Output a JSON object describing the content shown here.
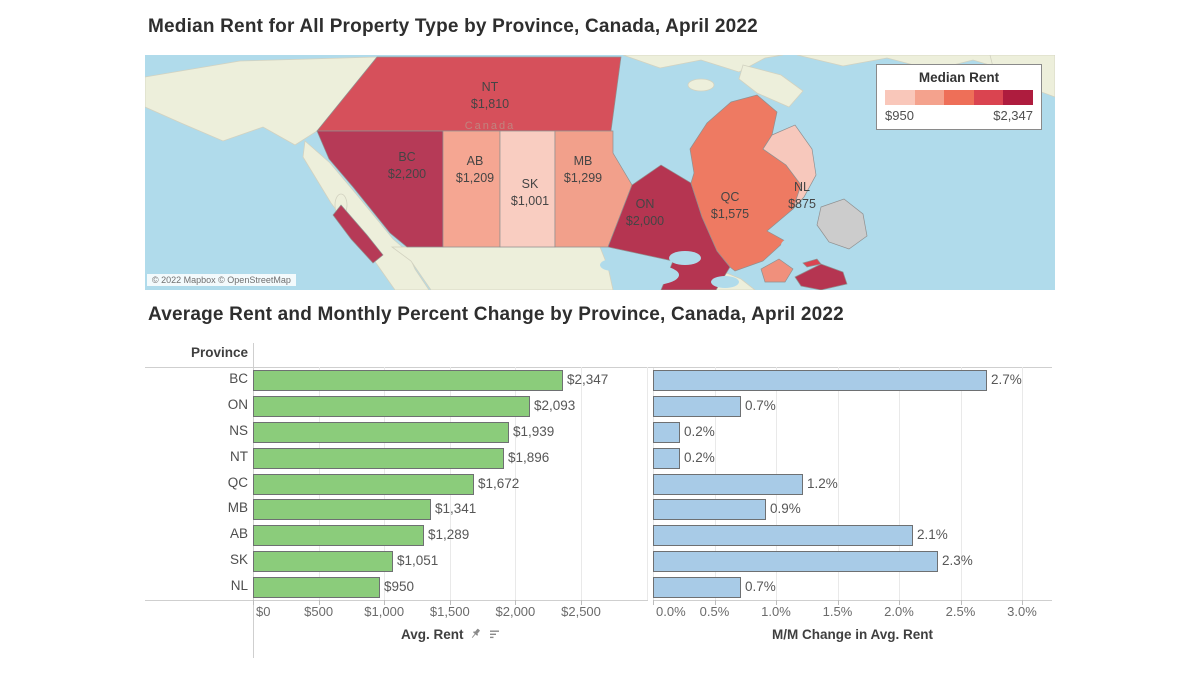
{
  "map": {
    "title": "Median Rent for All Property Type by Province, Canada, April 2022",
    "country_label": "Canada",
    "attribution": "© 2022 Mapbox © OpenStreetMap",
    "legend": {
      "title": "Median Rent",
      "min_label": "$950",
      "max_label": "$2,347",
      "colors": [
        "#f9c7ba",
        "#f4a28d",
        "#ee6f58",
        "#da4450",
        "#ae1c3e"
      ]
    },
    "colors": {
      "ocean": "#b0dbeb",
      "land": "#edefdb"
    },
    "provinces": [
      {
        "code": "NT",
        "value_label": "$1,810",
        "color": "#d6505b"
      },
      {
        "code": "BC",
        "value_label": "$2,200",
        "color": "#b63a57"
      },
      {
        "code": "AB",
        "value_label": "$1,209",
        "color": "#f5a692"
      },
      {
        "code": "SK",
        "value_label": "$1,001",
        "color": "#f9cdc1"
      },
      {
        "code": "MB",
        "value_label": "$1,299",
        "color": "#f2a08b"
      },
      {
        "code": "ON",
        "value_label": "$2,000",
        "color": "#b53551"
      },
      {
        "code": "QC",
        "value_label": "$1,575",
        "color": "#ee7a62"
      },
      {
        "code": "NL",
        "value_label": "$875",
        "color": "#f7c8bc"
      }
    ]
  },
  "charts": {
    "title": "Average Rent and Monthly Percent Change by Province, Canada, April 2022",
    "row_header": "Province",
    "left": {
      "axis_title": "Avg. Rent",
      "ticks": [
        "$0",
        "$500",
        "$1,000",
        "$1,500",
        "$2,000",
        "$2,500"
      ],
      "bar_color": "#8bcc7b"
    },
    "right": {
      "axis_title": "M/M Change in Avg. Rent",
      "ticks": [
        "0.0%",
        "0.5%",
        "1.0%",
        "1.5%",
        "2.0%",
        "2.5%",
        "3.0%"
      ],
      "bar_color": "#a8cbe7"
    },
    "rows": [
      {
        "province": "BC",
        "rent": 2347,
        "rent_label": "$2,347",
        "change": 2.7,
        "change_label": "2.7%"
      },
      {
        "province": "ON",
        "rent": 2093,
        "rent_label": "$2,093",
        "change": 0.7,
        "change_label": "0.7%"
      },
      {
        "province": "NS",
        "rent": 1939,
        "rent_label": "$1,939",
        "change": 0.2,
        "change_label": "0.2%"
      },
      {
        "province": "NT",
        "rent": 1896,
        "rent_label": "$1,896",
        "change": 0.2,
        "change_label": "0.2%"
      },
      {
        "province": "QC",
        "rent": 1672,
        "rent_label": "$1,672",
        "change": 1.2,
        "change_label": "1.2%"
      },
      {
        "province": "MB",
        "rent": 1341,
        "rent_label": "$1,341",
        "change": 0.9,
        "change_label": "0.9%"
      },
      {
        "province": "AB",
        "rent": 1289,
        "rent_label": "$1,289",
        "change": 2.1,
        "change_label": "2.1%"
      },
      {
        "province": "SK",
        "rent": 1051,
        "rent_label": "$1,051",
        "change": 2.3,
        "change_label": "2.3%"
      },
      {
        "province": "NL",
        "rent": 950,
        "rent_label": "$950",
        "change": 0.7,
        "change_label": "0.7%"
      }
    ]
  },
  "chart_data": [
    {
      "type": "heatmap",
      "subtype": "choropleth-map",
      "title": "Median Rent for All Property Type by Province, Canada, April 2022",
      "legend_title": "Median Rent",
      "value_range": [
        950,
        2347
      ],
      "categories": [
        "NT",
        "BC",
        "AB",
        "SK",
        "MB",
        "ON",
        "QC",
        "NL"
      ],
      "values": [
        1810,
        2200,
        1209,
        1001,
        1299,
        2000,
        1575,
        875
      ],
      "legend_position": "top-right",
      "attribution": "© 2022 Mapbox © OpenStreetMap"
    },
    {
      "type": "bar",
      "orientation": "horizontal",
      "title": "Average Rent by Province, Canada, April 2022",
      "categories": [
        "BC",
        "ON",
        "NS",
        "NT",
        "QC",
        "MB",
        "AB",
        "SK",
        "NL"
      ],
      "values": [
        2347,
        2093,
        1939,
        1896,
        1672,
        1341,
        1289,
        1051,
        950
      ],
      "data_labels": [
        "$2,347",
        "$2,093",
        "$1,939",
        "$1,896",
        "$1,672",
        "$1,341",
        "$1,289",
        "$1,051",
        "$950"
      ],
      "xlabel": "Avg. Rent",
      "ylabel": "Province",
      "xlim": [
        0,
        3000
      ],
      "x_ticks": [
        0,
        500,
        1000,
        1500,
        2000,
        2500
      ],
      "grid": true
    },
    {
      "type": "bar",
      "orientation": "horizontal",
      "title": "Monthly Percent Change in Avg. Rent by Province, Canada, April 2022",
      "categories": [
        "BC",
        "ON",
        "NS",
        "NT",
        "QC",
        "MB",
        "AB",
        "SK",
        "NL"
      ],
      "values": [
        2.7,
        0.7,
        0.2,
        0.2,
        1.2,
        0.9,
        2.1,
        2.3,
        0.7
      ],
      "data_labels": [
        "2.7%",
        "0.7%",
        "0.2%",
        "0.2%",
        "1.2%",
        "0.9%",
        "2.1%",
        "2.3%",
        "0.7%"
      ],
      "xlabel": "M/M Change in Avg. Rent",
      "ylabel": "Province",
      "xlim": [
        0,
        3.0
      ],
      "x_ticks": [
        0.0,
        0.5,
        1.0,
        1.5,
        2.0,
        2.5,
        3.0
      ],
      "grid": true
    }
  ]
}
